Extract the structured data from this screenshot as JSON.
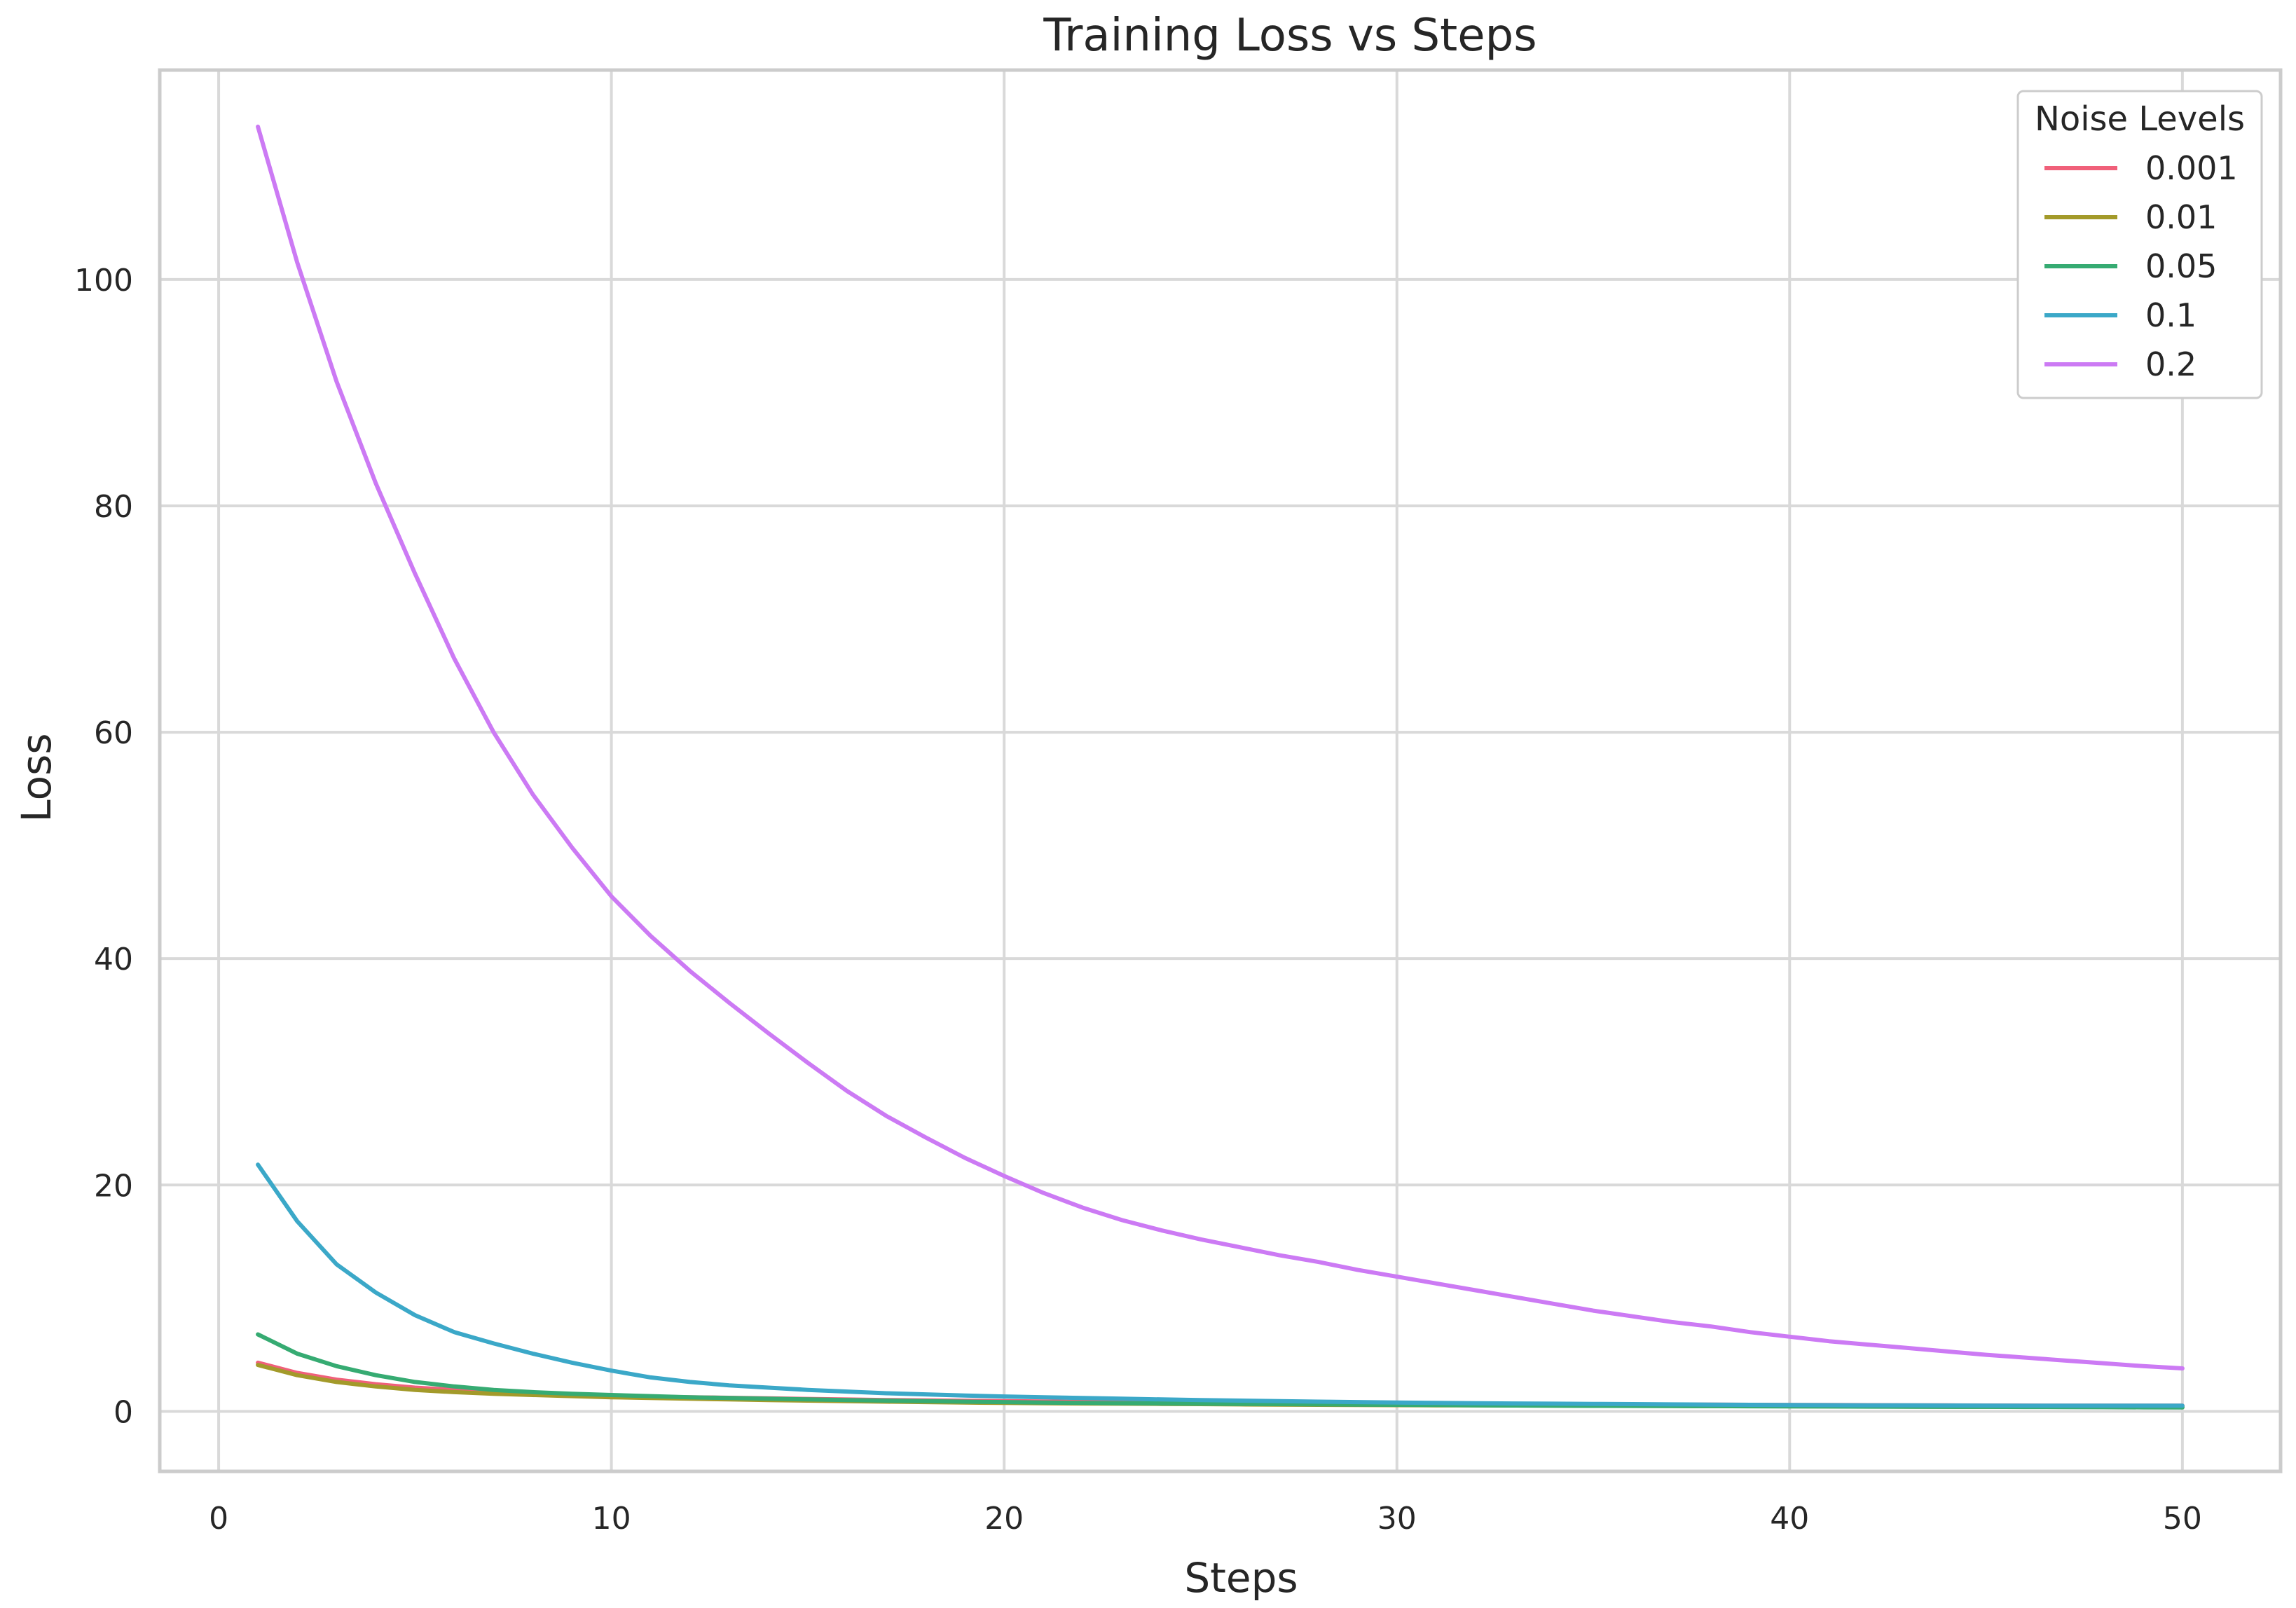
{
  "chart_data": {
    "type": "line",
    "title": "Training Loss vs Steps",
    "xlabel": "Steps",
    "ylabel": "Loss",
    "xlim": [
      -1.5,
      52.5
    ],
    "ylim": [
      -5.3,
      118.5
    ],
    "xticks": [
      0,
      10,
      20,
      30,
      40,
      50
    ],
    "yticks": [
      0,
      20,
      40,
      60,
      80,
      100
    ],
    "grid": true,
    "legend": {
      "title": "Noise Levels",
      "placement": "top-right"
    },
    "x": [
      1,
      2,
      3,
      4,
      5,
      6,
      7,
      8,
      9,
      10,
      11,
      12,
      13,
      14,
      15,
      16,
      17,
      18,
      19,
      20,
      21,
      22,
      23,
      24,
      25,
      26,
      27,
      28,
      29,
      30,
      31,
      32,
      33,
      34,
      35,
      36,
      37,
      38,
      39,
      40,
      41,
      42,
      43,
      44,
      45,
      46,
      47,
      48,
      49,
      50
    ],
    "series": [
      {
        "name": "0.001",
        "color": "#f0607a",
        "values": [
          4.3,
          3.4,
          2.8,
          2.4,
          2.1,
          1.9,
          1.7,
          1.6,
          1.5,
          1.4,
          1.3,
          1.25,
          1.2,
          1.15,
          1.1,
          1.05,
          1.0,
          0.97,
          0.94,
          0.9,
          0.87,
          0.84,
          0.82,
          0.8,
          0.78,
          0.76,
          0.74,
          0.72,
          0.7,
          0.68,
          0.66,
          0.65,
          0.64,
          0.63,
          0.62,
          0.61,
          0.6,
          0.59,
          0.58,
          0.57,
          0.56,
          0.55,
          0.54,
          0.53,
          0.52,
          0.51,
          0.5,
          0.5,
          0.5,
          0.5
        ]
      },
      {
        "name": "0.01",
        "color": "#a39a2a",
        "values": [
          4.1,
          3.2,
          2.6,
          2.2,
          1.9,
          1.7,
          1.55,
          1.45,
          1.35,
          1.25,
          1.18,
          1.12,
          1.06,
          1.0,
          0.95,
          0.9,
          0.86,
          0.82,
          0.78,
          0.75,
          0.72,
          0.7,
          0.68,
          0.66,
          0.64,
          0.62,
          0.6,
          0.58,
          0.56,
          0.55,
          0.54,
          0.53,
          0.52,
          0.51,
          0.5,
          0.49,
          0.48,
          0.47,
          0.46,
          0.45,
          0.44,
          0.43,
          0.42,
          0.41,
          0.4,
          0.4,
          0.4,
          0.4,
          0.4,
          0.4
        ]
      },
      {
        "name": "0.05",
        "color": "#36ab72",
        "values": [
          6.8,
          5.1,
          4.0,
          3.2,
          2.6,
          2.2,
          1.9,
          1.7,
          1.55,
          1.45,
          1.35,
          1.25,
          1.18,
          1.12,
          1.06,
          1.0,
          0.95,
          0.9,
          0.86,
          0.82,
          0.78,
          0.75,
          0.72,
          0.7,
          0.68,
          0.66,
          0.64,
          0.62,
          0.6,
          0.58,
          0.56,
          0.54,
          0.52,
          0.5,
          0.49,
          0.48,
          0.47,
          0.46,
          0.45,
          0.44,
          0.43,
          0.42,
          0.41,
          0.4,
          0.4,
          0.39,
          0.38,
          0.37,
          0.36,
          0.35
        ]
      },
      {
        "name": "0.1",
        "color": "#3ba8c8",
        "values": [
          21.8,
          16.8,
          13.0,
          10.5,
          8.5,
          7.0,
          6.0,
          5.1,
          4.3,
          3.6,
          3.0,
          2.6,
          2.3,
          2.1,
          1.9,
          1.75,
          1.6,
          1.5,
          1.4,
          1.32,
          1.25,
          1.18,
          1.12,
          1.06,
          1.0,
          0.95,
          0.9,
          0.86,
          0.82,
          0.78,
          0.75,
          0.72,
          0.7,
          0.68,
          0.66,
          0.64,
          0.62,
          0.6,
          0.58,
          0.56,
          0.55,
          0.54,
          0.53,
          0.52,
          0.51,
          0.5,
          0.5,
          0.5,
          0.5,
          0.5
        ]
      },
      {
        "name": "0.2",
        "color": "#cc7af4",
        "values": [
          113.5,
          101.5,
          91.0,
          82.0,
          74.0,
          66.5,
          60.0,
          54.5,
          49.8,
          45.5,
          42.0,
          38.9,
          36.1,
          33.4,
          30.8,
          28.3,
          26.1,
          24.2,
          22.4,
          20.8,
          19.3,
          18.0,
          16.9,
          16.0,
          15.2,
          14.5,
          13.8,
          13.2,
          12.5,
          11.9,
          11.3,
          10.7,
          10.1,
          9.5,
          8.9,
          8.4,
          7.9,
          7.5,
          7.0,
          6.6,
          6.2,
          5.9,
          5.6,
          5.3,
          5.0,
          4.75,
          4.5,
          4.25,
          4.0,
          3.8
        ]
      }
    ]
  }
}
